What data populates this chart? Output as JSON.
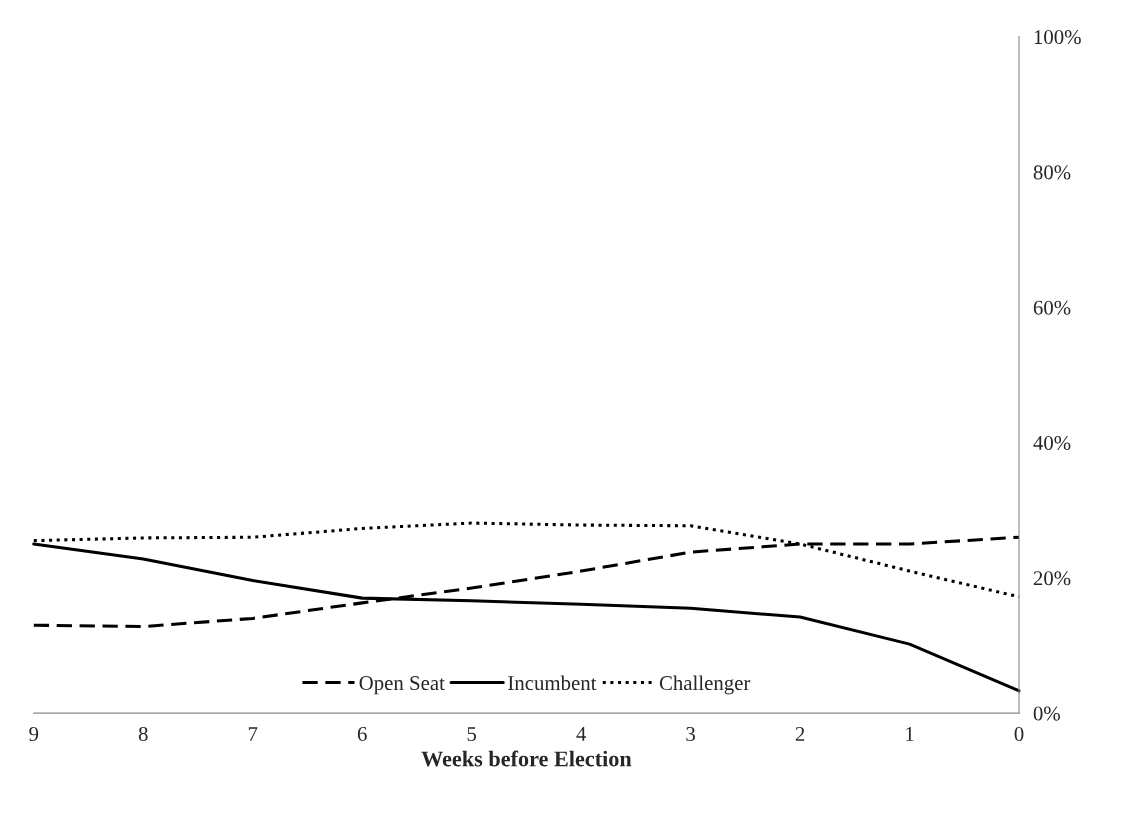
{
  "chart_data": {
    "type": "line",
    "xlabel": "Weeks before Election",
    "x": [
      9,
      8,
      7,
      6,
      5,
      4,
      3,
      2,
      1,
      0
    ],
    "series": [
      {
        "name": "Open Seat",
        "color": "#000000",
        "line_style": "dashed",
        "values": [
          13,
          12.8,
          14,
          16.3,
          18.5,
          21,
          23.8,
          25,
          25,
          26
        ]
      },
      {
        "name": "Incumbent",
        "color": "#000000",
        "line_style": "solid",
        "values": [
          25,
          22.8,
          19.6,
          17,
          16.6,
          16.1,
          15.5,
          14.2,
          10.2,
          3.3
        ]
      },
      {
        "name": "Challenger",
        "color": "#000000",
        "line_style": "dotted",
        "values": [
          25.5,
          25.9,
          26,
          27.3,
          28.1,
          27.8,
          27.7,
          25,
          21,
          17.2
        ]
      }
    ],
    "xlim": [
      9,
      0
    ],
    "xticks": [
      9,
      8,
      7,
      6,
      5,
      4,
      3,
      2,
      1,
      0
    ],
    "ylim": [
      0,
      100
    ],
    "yticks": [
      {
        "value": 0,
        "label": "0%"
      },
      {
        "value": 20,
        "label": "20%"
      },
      {
        "value": 40,
        "label": "40%"
      },
      {
        "value": 60,
        "label": "60%"
      },
      {
        "value": 80,
        "label": "80%"
      },
      {
        "value": 100,
        "label": "100%"
      }
    ],
    "grid": false,
    "legend": "bottom",
    "marker": "none"
  }
}
